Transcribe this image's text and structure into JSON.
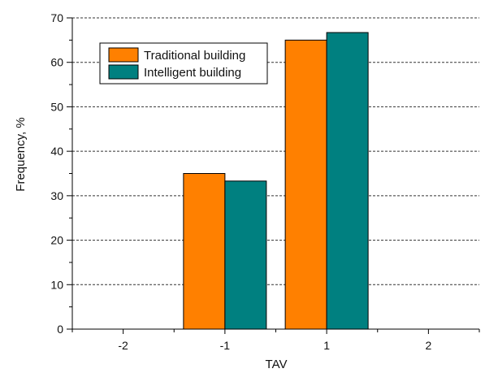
{
  "chart_data": {
    "type": "bar",
    "xlabel": "TAV",
    "ylabel": "Frequency, %",
    "categories": [
      "-2",
      "-1",
      "1",
      "2"
    ],
    "ylim": [
      0,
      70
    ],
    "yticks": [
      "0",
      "10",
      "20",
      "30",
      "40",
      "50",
      "60",
      "70"
    ],
    "grid": "horizontal dashed",
    "legend_position": "top-left",
    "series": [
      {
        "name": "Traditional building",
        "color": "#ff8000",
        "values": [
          0,
          35,
          65,
          0
        ]
      },
      {
        "name": "Intelligent building",
        "color": "#008080",
        "values": [
          0,
          33.3,
          66.7,
          0
        ]
      }
    ]
  }
}
